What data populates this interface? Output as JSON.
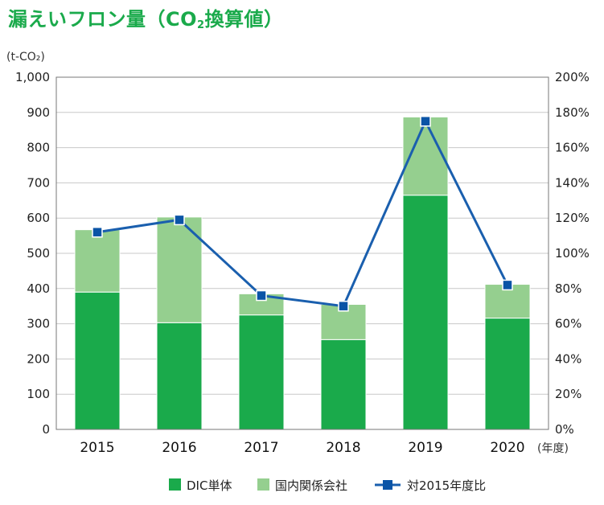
{
  "title_main": "漏えいフロン量（CO",
  "title_sub": "2",
  "title_end": "換算値）",
  "chart_data": {
    "type": "bar",
    "stacked": true,
    "unit_left": "(t-CO₂)",
    "unit_x": "(年度)",
    "categories": [
      "2015",
      "2016",
      "2017",
      "2018",
      "2019",
      "2020"
    ],
    "ylim": [
      0,
      1000
    ],
    "yticks": [
      "0",
      "100",
      "200",
      "300",
      "400",
      "500",
      "600",
      "700",
      "800",
      "900",
      "1,000"
    ],
    "y2lim": [
      0,
      200
    ],
    "y2ticks": [
      "0%",
      "20%",
      "40%",
      "60%",
      "80%",
      "100%",
      "120%",
      "140%",
      "160%",
      "180%",
      "200%"
    ],
    "series": [
      {
        "name": "DIC単体",
        "type": "bar",
        "color": "#1aaa4b",
        "values": [
          390,
          303,
          325,
          255,
          665,
          316
        ]
      },
      {
        "name": "国内関係会社",
        "type": "bar",
        "color": "#95cf8f",
        "values": [
          177,
          300,
          60,
          100,
          222,
          96
        ]
      },
      {
        "name": "対2015年度比",
        "type": "line",
        "axis": "right",
        "color": "#1a5fae",
        "marker_color": "#0a54a6",
        "values": [
          112,
          119,
          76,
          70,
          175,
          82
        ]
      }
    ],
    "grid": true,
    "legend": "bottom"
  }
}
